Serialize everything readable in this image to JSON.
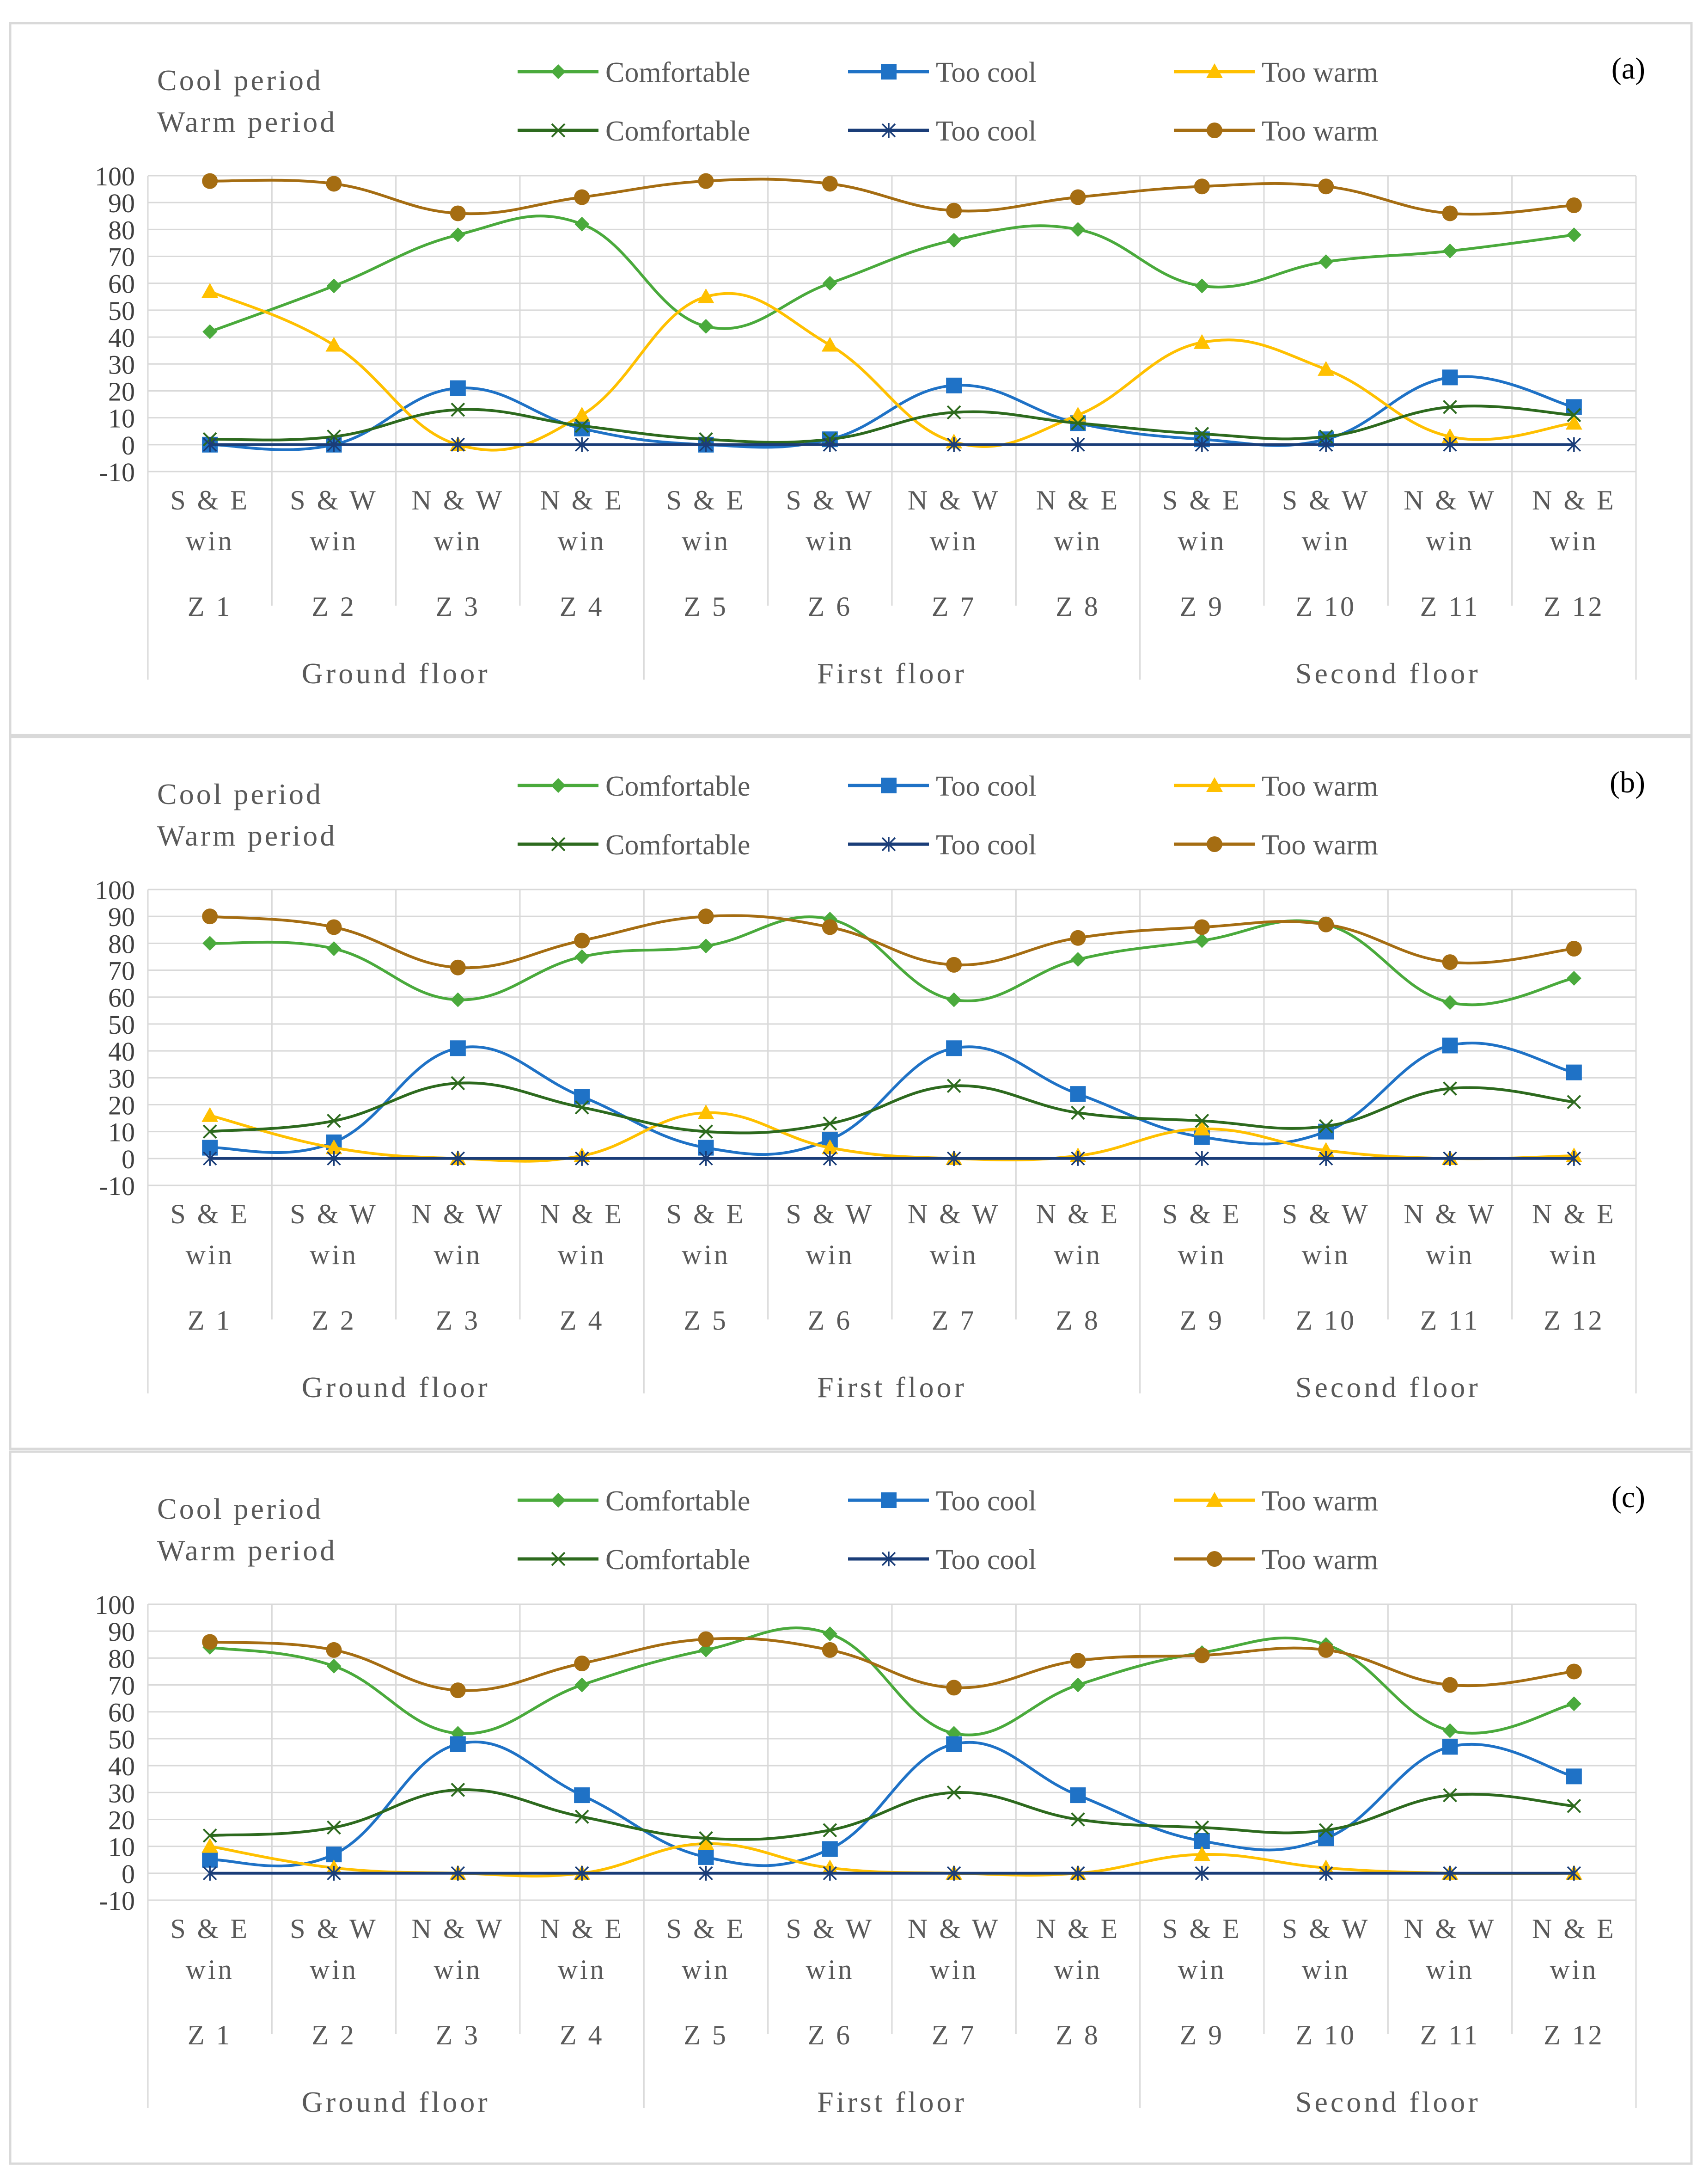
{
  "legend": {
    "cool_period_label": "Cool period",
    "warm_period_label": "Warm period",
    "cool_series": [
      "Comfortable",
      "Too cool",
      "Too warm"
    ],
    "warm_series": [
      "Comfortable",
      "Too cool",
      "Too warm"
    ]
  },
  "x_axis": {
    "orientation_rows": [
      [
        "S & E",
        "S & W",
        "N & W",
        "N & E",
        "S & E",
        "S & W",
        "N & W",
        "N & E",
        "S & E",
        "S & W",
        "N & W",
        "N & E"
      ],
      [
        "win",
        "win",
        "win",
        "win",
        "win",
        "win",
        "win",
        "win",
        "win",
        "win",
        "win",
        "win"
      ]
    ],
    "zones": [
      "Z 1",
      "Z 2",
      "Z 3",
      "Z 4",
      "Z 5",
      "Z 6",
      "Z 7",
      "Z 8",
      "Z 9",
      "Z 10",
      "Z 11",
      "Z 12"
    ],
    "floors": [
      "Ground floor",
      "First floor",
      "Second floor"
    ]
  },
  "colors": {
    "cool_comfortable": "#4aaa3c",
    "cool_too_cool": "#1f72c6",
    "cool_too_warm": "#ffc000",
    "warm_comfortable": "#2d6a1e",
    "warm_too_cool": "#1a3d78",
    "warm_too_warm": "#a56d12"
  },
  "chart_data": [
    {
      "type": "line",
      "panel_label": "(a)",
      "categories": [
        "Z 1",
        "Z 2",
        "Z 3",
        "Z 4",
        "Z 5",
        "Z 6",
        "Z 7",
        "Z 8",
        "Z 9",
        "Z 10",
        "Z 11",
        "Z 12"
      ],
      "yticks": [
        "100",
        "90",
        "80",
        "70",
        "60",
        "50",
        "40",
        "30",
        "20",
        "10",
        "0",
        "-10"
      ],
      "ylim": [
        -10,
        100
      ],
      "series": [
        {
          "name": "Comfortable",
          "period": "Cool period",
          "marker": "diamond",
          "color_key": "cool_comfortable",
          "values": [
            42,
            59,
            78,
            82,
            44,
            60,
            76,
            80,
            59,
            68,
            72,
            78
          ]
        },
        {
          "name": "Too cool",
          "period": "Cool period",
          "marker": "square",
          "color_key": "cool_too_cool",
          "values": [
            0,
            0,
            21,
            6,
            0,
            2,
            22,
            8,
            2,
            2,
            25,
            14
          ]
        },
        {
          "name": "Too warm",
          "period": "Cool period",
          "marker": "triangle",
          "color_key": "cool_too_warm",
          "values": [
            57,
            37,
            0,
            11,
            55,
            37,
            1,
            11,
            38,
            28,
            3,
            8
          ]
        },
        {
          "name": "Comfortable",
          "period": "Warm period",
          "marker": "x",
          "color_key": "warm_comfortable",
          "values": [
            2,
            3,
            13,
            7,
            2,
            2,
            12,
            8,
            4,
            3,
            14,
            11
          ]
        },
        {
          "name": "Too cool",
          "period": "Warm period",
          "marker": "star",
          "color_key": "warm_too_cool",
          "values": [
            0,
            0,
            0,
            0,
            0,
            0,
            0,
            0,
            0,
            0,
            0,
            0
          ]
        },
        {
          "name": "Too warm",
          "period": "Warm period",
          "marker": "circle",
          "color_key": "warm_too_warm",
          "values": [
            98,
            97,
            86,
            92,
            98,
            97,
            87,
            92,
            96,
            96,
            86,
            89
          ]
        }
      ]
    },
    {
      "type": "line",
      "panel_label": "(b)",
      "categories": [
        "Z 1",
        "Z 2",
        "Z 3",
        "Z 4",
        "Z 5",
        "Z 6",
        "Z 7",
        "Z 8",
        "Z 9",
        "Z 10",
        "Z 11",
        "Z 12"
      ],
      "yticks": [
        "100",
        "90",
        "80",
        "70",
        "60",
        "50",
        "40",
        "30",
        "20",
        "10",
        "0",
        "-10"
      ],
      "ylim": [
        -10,
        100
      ],
      "series": [
        {
          "name": "Comfortable",
          "period": "Cool period",
          "marker": "diamond",
          "color_key": "cool_comfortable",
          "values": [
            80,
            78,
            59,
            75,
            79,
            89,
            59,
            74,
            81,
            87,
            58,
            67
          ]
        },
        {
          "name": "Too cool",
          "period": "Cool period",
          "marker": "square",
          "color_key": "cool_too_cool",
          "values": [
            4,
            6,
            41,
            23,
            4,
            7,
            41,
            24,
            8,
            10,
            42,
            32
          ]
        },
        {
          "name": "Too warm",
          "period": "Cool period",
          "marker": "triangle",
          "color_key": "cool_too_warm",
          "values": [
            16,
            4,
            0,
            1,
            17,
            4,
            0,
            1,
            11,
            3,
            0,
            1
          ]
        },
        {
          "name": "Comfortable",
          "period": "Warm period",
          "marker": "x",
          "color_key": "warm_comfortable",
          "values": [
            10,
            14,
            28,
            19,
            10,
            13,
            27,
            17,
            14,
            12,
            26,
            21
          ]
        },
        {
          "name": "Too cool",
          "period": "Warm period",
          "marker": "star",
          "color_key": "warm_too_cool",
          "values": [
            0,
            0,
            0,
            0,
            0,
            0,
            0,
            0,
            0,
            0,
            0,
            0
          ]
        },
        {
          "name": "Too warm",
          "period": "Warm period",
          "marker": "circle",
          "color_key": "warm_too_warm",
          "values": [
            90,
            86,
            71,
            81,
            90,
            86,
            72,
            82,
            86,
            87,
            73,
            78
          ]
        }
      ]
    },
    {
      "type": "line",
      "panel_label": "(c)",
      "categories": [
        "Z 1",
        "Z 2",
        "Z 3",
        "Z 4",
        "Z 5",
        "Z 6",
        "Z 7",
        "Z 8",
        "Z 9",
        "Z 10",
        "Z 11",
        "Z 12"
      ],
      "yticks": [
        "100",
        "90",
        "80",
        "70",
        "60",
        "50",
        "40",
        "30",
        "20",
        "10",
        "0",
        "-10"
      ],
      "ylim": [
        -10,
        100
      ],
      "series": [
        {
          "name": "Comfortable",
          "period": "Cool period",
          "marker": "diamond",
          "color_key": "cool_comfortable",
          "values": [
            84,
            77,
            52,
            70,
            83,
            89,
            52,
            70,
            82,
            85,
            53,
            63
          ]
        },
        {
          "name": "Too cool",
          "period": "Cool period",
          "marker": "square",
          "color_key": "cool_too_cool",
          "values": [
            5,
            7,
            48,
            29,
            6,
            9,
            48,
            29,
            12,
            13,
            47,
            36
          ]
        },
        {
          "name": "Too warm",
          "period": "Cool period",
          "marker": "triangle",
          "color_key": "cool_too_warm",
          "values": [
            10,
            2,
            0,
            0,
            11,
            2,
            0,
            0,
            7,
            2,
            0,
            0
          ]
        },
        {
          "name": "Comfortable",
          "period": "Warm period",
          "marker": "x",
          "color_key": "warm_comfortable",
          "values": [
            14,
            17,
            31,
            21,
            13,
            16,
            30,
            20,
            17,
            16,
            29,
            25
          ]
        },
        {
          "name": "Too cool",
          "period": "Warm period",
          "marker": "star",
          "color_key": "warm_too_cool",
          "values": [
            0,
            0,
            0,
            0,
            0,
            0,
            0,
            0,
            0,
            0,
            0,
            0
          ]
        },
        {
          "name": "Too warm",
          "period": "Warm period",
          "marker": "circle",
          "color_key": "warm_too_warm",
          "values": [
            86,
            83,
            68,
            78,
            87,
            83,
            69,
            79,
            81,
            83,
            70,
            75
          ]
        }
      ]
    }
  ]
}
